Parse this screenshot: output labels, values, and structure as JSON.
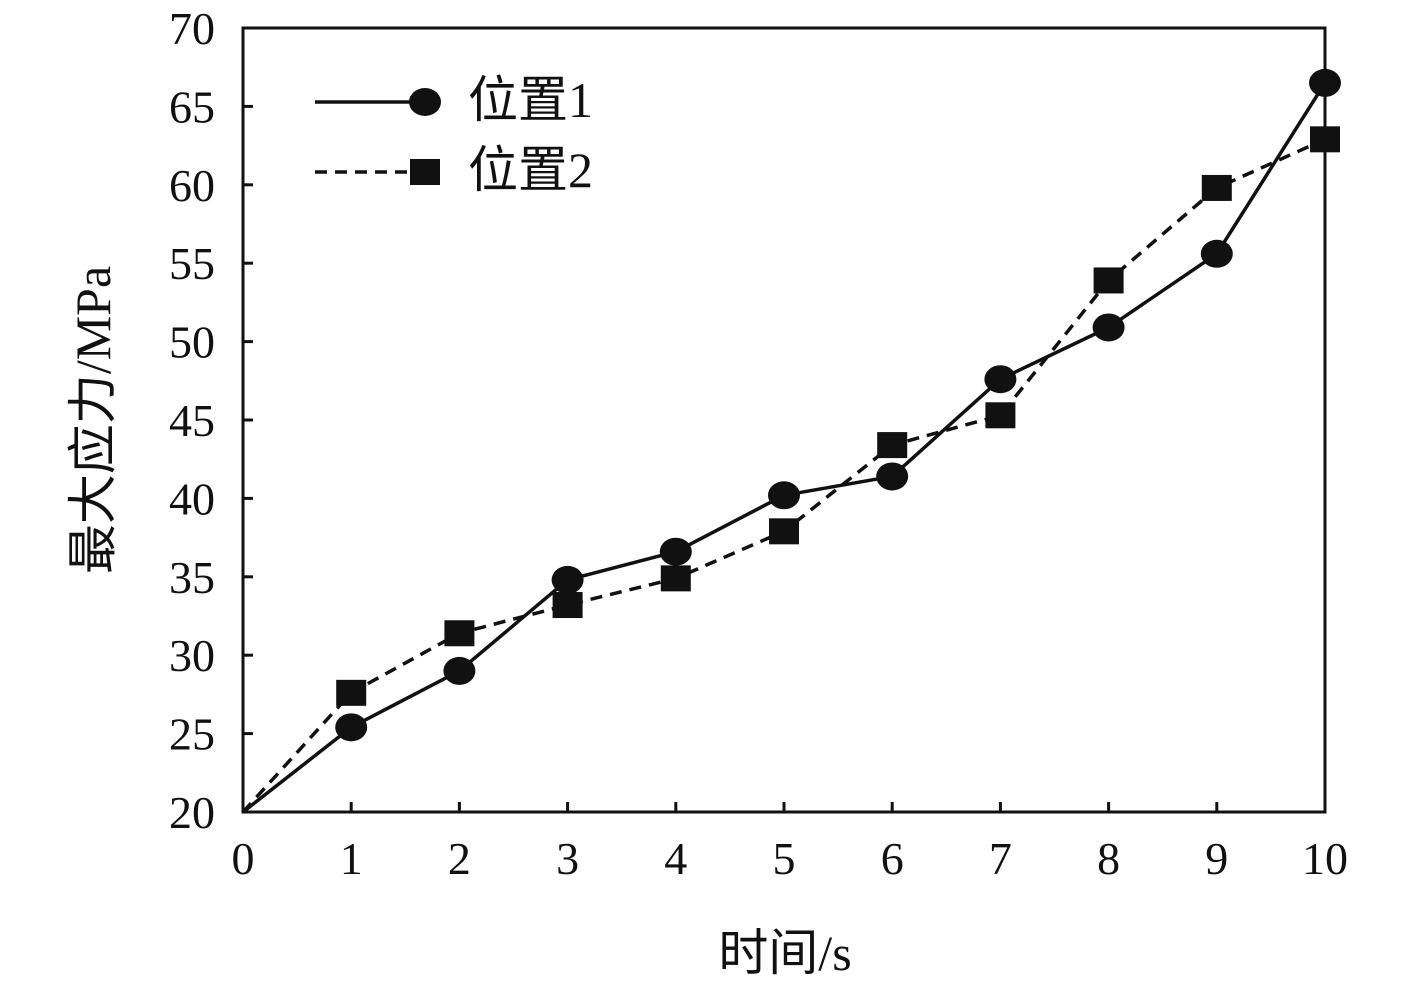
{
  "chart_data": {
    "type": "line",
    "xlabel": "时间/s",
    "ylabel": "最大应力/MPa",
    "xlim": [
      0,
      10
    ],
    "ylim": [
      20,
      70
    ],
    "x_ticks": [
      "0",
      "1",
      "2",
      "3",
      "4",
      "5",
      "6",
      "7",
      "8",
      "9",
      "10"
    ],
    "y_ticks": [
      "20",
      "25",
      "30",
      "35",
      "40",
      "45",
      "50",
      "55",
      "60",
      "65",
      "70"
    ],
    "grid": false,
    "legend_position": "top-left",
    "series": [
      {
        "name": "位置1",
        "line_style": "solid",
        "marker": "circle",
        "color": "#111111",
        "x": [
          0,
          1,
          2,
          3,
          4,
          5,
          6,
          7,
          8,
          9,
          10
        ],
        "y": [
          20,
          25.4,
          29,
          34.8,
          36.6,
          40.2,
          41.4,
          47.6,
          50.9,
          55.6,
          66.5
        ]
      },
      {
        "name": "位置2",
        "line_style": "dashed",
        "marker": "square",
        "color": "#111111",
        "x": [
          0,
          1,
          2,
          3,
          4,
          5,
          6,
          7,
          8,
          9,
          10
        ],
        "y": [
          20,
          27.6,
          31.4,
          33.2,
          34.9,
          37.9,
          43.4,
          45.3,
          53.9,
          59.8,
          62.9
        ]
      }
    ]
  }
}
